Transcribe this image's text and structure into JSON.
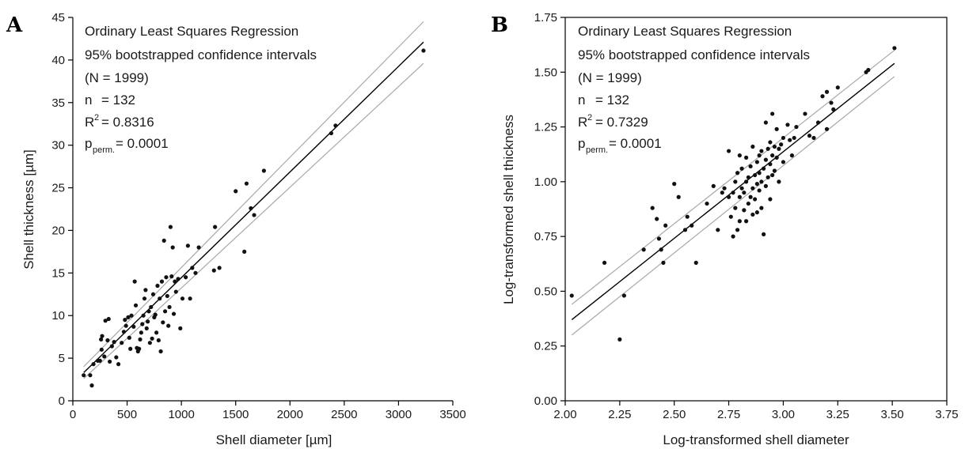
{
  "chart_data": [
    {
      "panel": "A",
      "type": "scatter",
      "xlabel": "Shell diameter [µm]",
      "ylabel": "Shell thickness [µm]",
      "xlim": [
        0,
        3500
      ],
      "ylim": [
        0,
        45
      ],
      "xticks": [
        "0",
        "500",
        "1000",
        "1500",
        "2000",
        "2500",
        "3000",
        "3500"
      ],
      "yticks": [
        "0",
        "5",
        "10",
        "15",
        "20",
        "25",
        "30",
        "35",
        "40",
        "45"
      ],
      "annotation": {
        "line1": "Ordinary Least Squares Regression",
        "line2": "95% bootstrapped confidence intervals",
        "line3": "(N = 1999)",
        "n_label": "n",
        "n_value": "= 132",
        "r2_label": "R",
        "r2_sup": "2",
        "r2_value": "= 0.8316",
        "p_label": "p",
        "p_sub": "perm.",
        "p_value": "= 0.0001"
      },
      "regression": {
        "x": [
          100,
          3230
        ],
        "y": [
          3.3,
          42.1
        ]
      },
      "ci_upper": {
        "x": [
          100,
          3230
        ],
        "y": [
          4.0,
          44.5
        ]
      },
      "ci_lower": {
        "x": [
          100,
          3230
        ],
        "y": [
          2.6,
          39.6
        ]
      },
      "grid": false,
      "points": [
        [
          100,
          3.0
        ],
        [
          160,
          3.0
        ],
        [
          175,
          1.8
        ],
        [
          190,
          4.3
        ],
        [
          230,
          4.7
        ],
        [
          250,
          4.7
        ],
        [
          260,
          7.2
        ],
        [
          265,
          6.0
        ],
        [
          270,
          7.6
        ],
        [
          290,
          5.2
        ],
        [
          300,
          9.4
        ],
        [
          320,
          7.1
        ],
        [
          330,
          9.6
        ],
        [
          340,
          4.6
        ],
        [
          360,
          6.4
        ],
        [
          380,
          6.9
        ],
        [
          400,
          5.1
        ],
        [
          420,
          4.3
        ],
        [
          450,
          6.8
        ],
        [
          470,
          8.1
        ],
        [
          480,
          9.5
        ],
        [
          490,
          8.8
        ],
        [
          510,
          9.8
        ],
        [
          520,
          7.4
        ],
        [
          530,
          6.1
        ],
        [
          540,
          10.0
        ],
        [
          560,
          8.7
        ],
        [
          570,
          14.0
        ],
        [
          580,
          11.2
        ],
        [
          590,
          6.2
        ],
        [
          600,
          5.8
        ],
        [
          610,
          6.1
        ],
        [
          620,
          7.2
        ],
        [
          630,
          8.0
        ],
        [
          640,
          9.0
        ],
        [
          650,
          10.0
        ],
        [
          660,
          12.0
        ],
        [
          670,
          13.0
        ],
        [
          680,
          8.5
        ],
        [
          690,
          9.3
        ],
        [
          700,
          10.5
        ],
        [
          710,
          6.8
        ],
        [
          720,
          11.0
        ],
        [
          730,
          7.3
        ],
        [
          740,
          12.5
        ],
        [
          750,
          9.8
        ],
        [
          760,
          10.1
        ],
        [
          770,
          8.0
        ],
        [
          780,
          13.5
        ],
        [
          790,
          7.1
        ],
        [
          800,
          12.0
        ],
        [
          810,
          5.8
        ],
        [
          820,
          14.0
        ],
        [
          830,
          9.2
        ],
        [
          840,
          18.8
        ],
        [
          850,
          10.5
        ],
        [
          860,
          14.5
        ],
        [
          870,
          12.3
        ],
        [
          880,
          8.8
        ],
        [
          890,
          11.0
        ],
        [
          900,
          20.4
        ],
        [
          910,
          14.6
        ],
        [
          920,
          18.0
        ],
        [
          930,
          10.2
        ],
        [
          940,
          14.0
        ],
        [
          950,
          12.8
        ],
        [
          970,
          14.3
        ],
        [
          990,
          8.5
        ],
        [
          1010,
          12.0
        ],
        [
          1040,
          14.5
        ],
        [
          1060,
          18.2
        ],
        [
          1080,
          12.0
        ],
        [
          1100,
          15.6
        ],
        [
          1130,
          15.0
        ],
        [
          1160,
          18.0
        ],
        [
          1300,
          15.3
        ],
        [
          1310,
          20.4
        ],
        [
          1350,
          15.6
        ],
        [
          1500,
          24.6
        ],
        [
          1580,
          17.5
        ],
        [
          1600,
          25.5
        ],
        [
          1640,
          22.6
        ],
        [
          1670,
          21.8
        ],
        [
          1760,
          27.0
        ],
        [
          2380,
          31.4
        ],
        [
          2420,
          32.3
        ],
        [
          3230,
          41.1
        ]
      ]
    },
    {
      "panel": "B",
      "type": "scatter",
      "xlabel": "Log-transformed shell diameter",
      "ylabel": "Log-transformed shell thickness",
      "xlim": [
        2.0,
        3.75
      ],
      "ylim": [
        0.0,
        1.75
      ],
      "xticks": [
        "2.00",
        "2.25",
        "2.50",
        "2.75",
        "3.00",
        "3.25",
        "3.50",
        "3.75"
      ],
      "yticks": [
        "0.00",
        "0.25",
        "0.50",
        "0.75",
        "1.00",
        "1.25",
        "1.50",
        "1.75"
      ],
      "annotation": {
        "line1": "Ordinary Least Squares Regression",
        "line2": "95% bootstrapped confidence intervals",
        "line3": "(N = 1999)",
        "n_label": "n",
        "n_value": "= 132",
        "r2_label": "R",
        "r2_sup": "2",
        "r2_value": "= 0.7329",
        "p_label": "p",
        "p_sub": "perm.",
        "p_value": "= 0.0001"
      },
      "regression": {
        "x": [
          2.03,
          3.51
        ],
        "y": [
          0.37,
          1.54
        ]
      },
      "ci_upper": {
        "x": [
          2.03,
          3.51
        ],
        "y": [
          0.44,
          1.6
        ]
      },
      "ci_lower": {
        "x": [
          2.03,
          3.51
        ],
        "y": [
          0.3,
          1.48
        ]
      },
      "grid": false,
      "points": [
        [
          2.03,
          0.48
        ],
        [
          2.18,
          0.63
        ],
        [
          2.25,
          0.28
        ],
        [
          2.27,
          0.48
        ],
        [
          2.36,
          0.69
        ],
        [
          2.4,
          0.88
        ],
        [
          2.42,
          0.83
        ],
        [
          2.43,
          0.74
        ],
        [
          2.44,
          0.69
        ],
        [
          2.45,
          0.63
        ],
        [
          2.46,
          0.8
        ],
        [
          2.5,
          0.99
        ],
        [
          2.52,
          0.93
        ],
        [
          2.55,
          0.78
        ],
        [
          2.56,
          0.84
        ],
        [
          2.58,
          0.8
        ],
        [
          2.6,
          0.63
        ],
        [
          2.65,
          0.9
        ],
        [
          2.68,
          0.98
        ],
        [
          2.7,
          0.78
        ],
        [
          2.72,
          0.95
        ],
        [
          2.73,
          0.97
        ],
        [
          2.75,
          1.14
        ],
        [
          2.75,
          0.93
        ],
        [
          2.76,
          0.84
        ],
        [
          2.77,
          0.75
        ],
        [
          2.77,
          0.95
        ],
        [
          2.78,
          1.0
        ],
        [
          2.78,
          0.88
        ],
        [
          2.79,
          1.04
        ],
        [
          2.79,
          0.78
        ],
        [
          2.8,
          1.12
        ],
        [
          2.8,
          0.93
        ],
        [
          2.8,
          0.82
        ],
        [
          2.81,
          1.06
        ],
        [
          2.81,
          0.97
        ],
        [
          2.82,
          0.87
        ],
        [
          2.82,
          0.95
        ],
        [
          2.83,
          1.11
        ],
        [
          2.83,
          1.0
        ],
        [
          2.83,
          0.82
        ],
        [
          2.84,
          1.02
        ],
        [
          2.84,
          0.9
        ],
        [
          2.85,
          1.07
        ],
        [
          2.85,
          0.93
        ],
        [
          2.86,
          1.16
        ],
        [
          2.86,
          0.97
        ],
        [
          2.86,
          0.85
        ],
        [
          2.87,
          1.03
        ],
        [
          2.87,
          0.92
        ],
        [
          2.88,
          1.09
        ],
        [
          2.88,
          0.99
        ],
        [
          2.88,
          0.86
        ],
        [
          2.89,
          1.12
        ],
        [
          2.89,
          1.04
        ],
        [
          2.89,
          0.96
        ],
        [
          2.9,
          1.14
        ],
        [
          2.9,
          1.0
        ],
        [
          2.9,
          0.88
        ],
        [
          2.91,
          1.06
        ],
        [
          2.91,
          0.76
        ],
        [
          2.92,
          1.27
        ],
        [
          2.92,
          1.1
        ],
        [
          2.92,
          0.98
        ],
        [
          2.93,
          1.15
        ],
        [
          2.93,
          1.02
        ],
        [
          2.94,
          1.18
        ],
        [
          2.94,
          1.08
        ],
        [
          2.94,
          0.92
        ],
        [
          2.95,
          1.31
        ],
        [
          2.95,
          1.12
        ],
        [
          2.95,
          1.03
        ],
        [
          2.96,
          1.16
        ],
        [
          2.96,
          1.05
        ],
        [
          2.97,
          1.24
        ],
        [
          2.97,
          1.11
        ],
        [
          2.98,
          1.15
        ],
        [
          2.98,
          1.0
        ],
        [
          2.99,
          1.17
        ],
        [
          3.0,
          1.09
        ],
        [
          3.0,
          1.2
        ],
        [
          3.02,
          1.26
        ],
        [
          3.03,
          1.19
        ],
        [
          3.04,
          1.12
        ],
        [
          3.05,
          1.2
        ],
        [
          3.06,
          1.25
        ],
        [
          3.1,
          1.31
        ],
        [
          3.12,
          1.21
        ],
        [
          3.14,
          1.2
        ],
        [
          3.16,
          1.27
        ],
        [
          3.18,
          1.39
        ],
        [
          3.2,
          1.24
        ],
        [
          3.2,
          1.41
        ],
        [
          3.22,
          1.36
        ],
        [
          3.23,
          1.33
        ],
        [
          3.25,
          1.43
        ],
        [
          3.38,
          1.5
        ],
        [
          3.39,
          1.51
        ],
        [
          3.51,
          1.61
        ]
      ]
    }
  ]
}
